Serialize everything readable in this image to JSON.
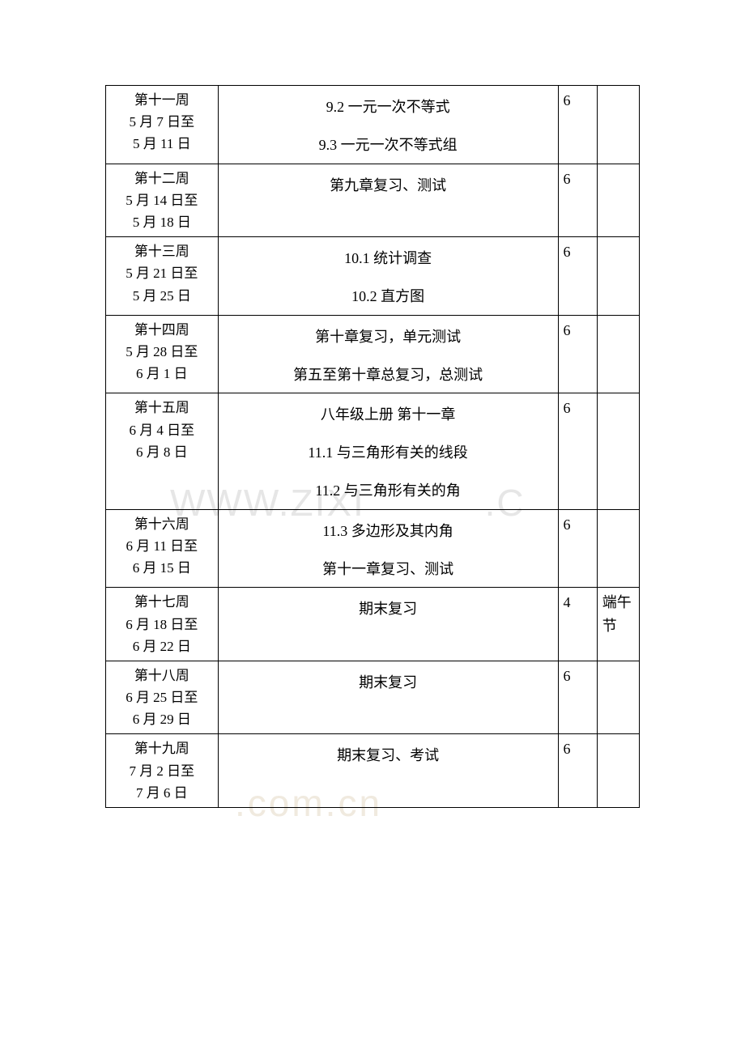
{
  "table": {
    "rows": [
      {
        "week_label": "第十一周",
        "date_range": [
          "5 月 7 日至",
          "5 月 11 日"
        ],
        "content_lines": [
          "9.2 一元一次不等式",
          "9.3 一元一次不等式组"
        ],
        "hours": "6",
        "note": ""
      },
      {
        "week_label": "第十二周",
        "date_range": [
          "5 月 14 日至",
          "5 月 18 日"
        ],
        "content_lines": [
          "第九章复习、测试"
        ],
        "hours": "6",
        "note": ""
      },
      {
        "week_label": "第十三周",
        "date_range": [
          "5 月 21 日至",
          "5 月 25 日"
        ],
        "content_lines": [
          "10.1 统计调查",
          "10.2 直方图"
        ],
        "hours": "6",
        "note": ""
      },
      {
        "week_label": "第十四周",
        "date_range": [
          "5 月 28 日至",
          "6 月 1 日"
        ],
        "content_lines": [
          "第十章复习，单元测试",
          "第五至第十章总复习，总测试"
        ],
        "hours": "6",
        "note": ""
      },
      {
        "week_label": "第十五周",
        "date_range": [
          "6 月 4 日至",
          "6 月 8 日"
        ],
        "content_lines": [
          "八年级上册 第十一章",
          "11.1 与三角形有关的线段",
          "11.2 与三角形有关的角"
        ],
        "hours": "6",
        "note": ""
      },
      {
        "week_label": "第十六周",
        "date_range": [
          "6 月 11 日至",
          "6 月 15 日"
        ],
        "content_lines": [
          "11.3 多边形及其内角",
          "第十一章复习、测试"
        ],
        "hours": "6",
        "note": ""
      },
      {
        "week_label": "第十七周",
        "date_range": [
          "6 月 18 日至",
          "6 月 22 日"
        ],
        "content_lines": [
          "期末复习"
        ],
        "hours": "4",
        "note": "端午节"
      },
      {
        "week_label": "第十八周",
        "date_range": [
          "6 月 25 日至",
          "6 月 29 日"
        ],
        "content_lines": [
          "期末复习"
        ],
        "hours": "6",
        "note": ""
      },
      {
        "week_label": "第十九周",
        "date_range": [
          "7 月 2 日至",
          "7 月 6 日"
        ],
        "content_lines": [
          "期末复习、考试"
        ],
        "hours": "6",
        "note": ""
      }
    ]
  },
  "watermark1": "WWW.ZIXI",
  "watermark1b": ".C",
  "watermark2": ".com.cn",
  "colors": {
    "background": "#ffffff",
    "border": "#000000",
    "text": "#000000",
    "watermark": "#e6e6e6"
  }
}
